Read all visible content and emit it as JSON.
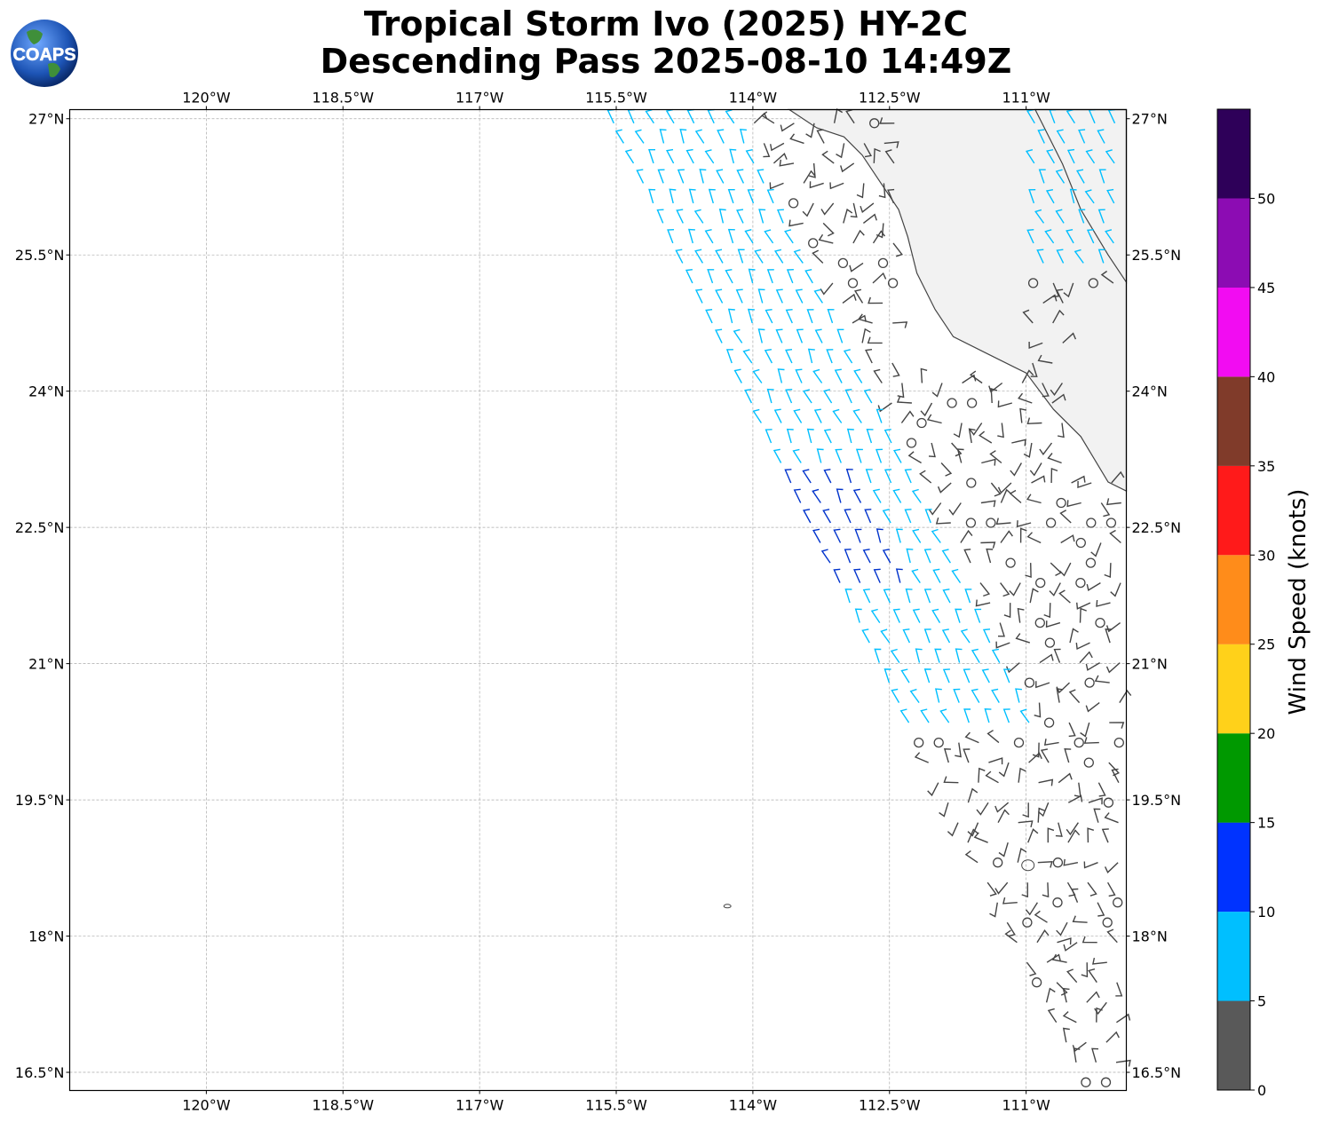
{
  "title": {
    "line1": "Tropical Storm Ivo (2025) HY-2C",
    "line2": "Descending Pass 2025-08-10 14:49Z"
  },
  "logo": {
    "text": "COAPS",
    "icon": "globe-icon"
  },
  "map": {
    "lon_range": [
      -121.5,
      -109.9
    ],
    "lat_range": [
      16.3,
      27.1
    ],
    "lon_ticks": [
      "120°W",
      "118.5°W",
      "117°W",
      "115.5°W",
      "114°W",
      "112.5°W",
      "111°W"
    ],
    "lon_tick_values": [
      -120,
      -118.5,
      -117,
      -115.5,
      -114,
      -112.5,
      -111
    ],
    "lat_ticks": [
      "27°N",
      "25.5°N",
      "24°N",
      "22.5°N",
      "21°N",
      "19.5°N",
      "18°N",
      "16.5°N"
    ],
    "lat_tick_values": [
      27,
      25.5,
      24,
      22.5,
      21,
      19.5,
      18,
      16.5
    ],
    "grid": true,
    "land_color": "#ffffff",
    "coast_color": "#444444"
  },
  "colorbar": {
    "label": "Wind Speed (knots)",
    "ticks": [
      "0",
      "5",
      "10",
      "15",
      "20",
      "25",
      "30",
      "35",
      "40",
      "45",
      "50"
    ],
    "bins": [
      {
        "min": 0,
        "max": 5,
        "color": "#595959"
      },
      {
        "min": 5,
        "max": 10,
        "color": "#00bfff"
      },
      {
        "min": 10,
        "max": 15,
        "color": "#0033ff"
      },
      {
        "min": 15,
        "max": 20,
        "color": "#009900"
      },
      {
        "min": 20,
        "max": 25,
        "color": "#ffd11a"
      },
      {
        "min": 25,
        "max": 30,
        "color": "#ff8c1a"
      },
      {
        "min": 30,
        "max": 35,
        "color": "#ff1a1a"
      },
      {
        "min": 35,
        "max": 40,
        "color": "#803b2a"
      },
      {
        "min": 40,
        "max": 45,
        "color": "#f20cf2"
      },
      {
        "min": 45,
        "max": 50,
        "color": "#8c0cb3"
      },
      {
        "min": 50,
        "max": 55,
        "color": "#2e0059"
      }
    ]
  },
  "swath": {
    "calm_color": "#444444",
    "light_color": "#00bfff",
    "moderate_color": "#0033cc"
  }
}
